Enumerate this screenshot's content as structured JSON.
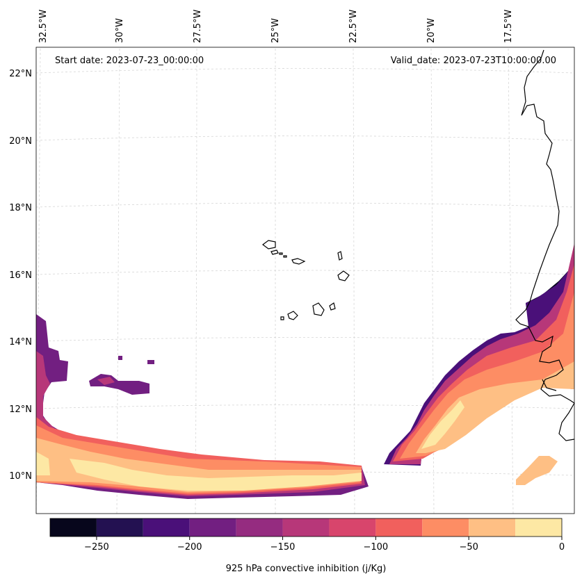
{
  "header": {
    "start_date": "Start date: 2023-07-23_00:00:00",
    "valid_date": "Valid_date: 2023-07-23T10:00:00.00"
  },
  "axes": {
    "longitude_labels": [
      "32.5°W",
      "30°W",
      "27.5°W",
      "25°W",
      "22.5°W",
      "20°W",
      "17.5°W"
    ],
    "latitude_labels": [
      "22°N",
      "20°N",
      "18°N",
      "16°N",
      "14°N",
      "12°N",
      "10°N"
    ]
  },
  "colorbar": {
    "label": "925 hPa convective inhibition (j/Kg)",
    "tick_labels": [
      "−250",
      "−200",
      "−150",
      "−100",
      "−50",
      "0"
    ],
    "levels": [
      -275,
      -250,
      -225,
      -200,
      -175,
      -150,
      -125,
      -100,
      -75,
      -50,
      -25,
      0
    ],
    "colors": [
      "#07061c",
      "#231151",
      "#4a1079",
      "#721f81",
      "#952c80",
      "#b73779",
      "#d8456c",
      "#f1605d",
      "#fd8d64",
      "#febf84",
      "#fde8a4"
    ]
  },
  "colors": {
    "land_outline": "#000000",
    "gridline": "#d0d0d0",
    "frame": "#000000"
  }
}
